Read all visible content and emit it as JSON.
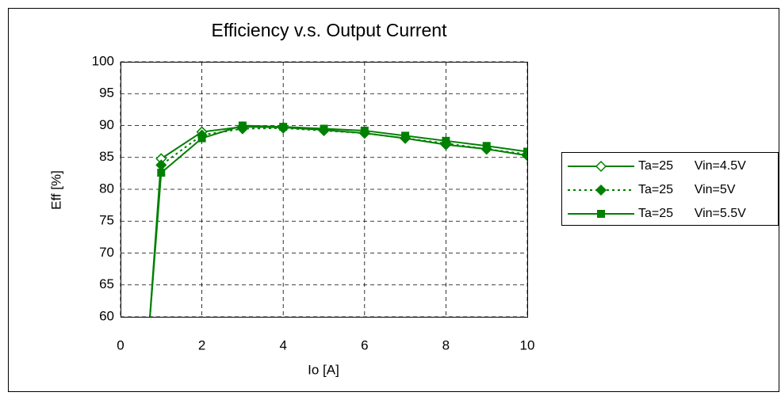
{
  "chart_data": {
    "type": "line",
    "title": "Efficiency v.s. Output Current",
    "x_label": "Io [A]",
    "y_label": "Eff [%]",
    "x": [
      0.7,
      1,
      2,
      3,
      4,
      5,
      6,
      7,
      8,
      9,
      10
    ],
    "series": [
      {
        "name": "Ta=25      Vin=4.5V",
        "color": "#008000",
        "marker": "open-diamond",
        "dash": "solid",
        "values": [
          58,
          84.8,
          89,
          89.8,
          89.7,
          89.3,
          88.8,
          88,
          87,
          86.3,
          85.3
        ]
      },
      {
        "name": "Ta=25      Vin=5V",
        "color": "#008000",
        "marker": "diamond",
        "dash": "dotted",
        "values": [
          58,
          83.8,
          88.5,
          89.5,
          89.6,
          89.2,
          88.8,
          88,
          87.2,
          86.3,
          85.5
        ]
      },
      {
        "name": "Ta=25      Vin=5.5V",
        "color": "#008000",
        "marker": "square",
        "dash": "solid",
        "values": [
          58,
          82.6,
          88,
          90,
          89.8,
          89.5,
          89.2,
          88.4,
          87.6,
          86.8,
          85.9
        ]
      }
    ],
    "xlim": [
      0,
      10
    ],
    "xticks": [
      0,
      2,
      4,
      6,
      8,
      10
    ],
    "ylim": [
      60,
      100
    ],
    "yticks": [
      60,
      65,
      70,
      75,
      80,
      85,
      90,
      95,
      100
    ],
    "grid": true,
    "legend": "right"
  }
}
